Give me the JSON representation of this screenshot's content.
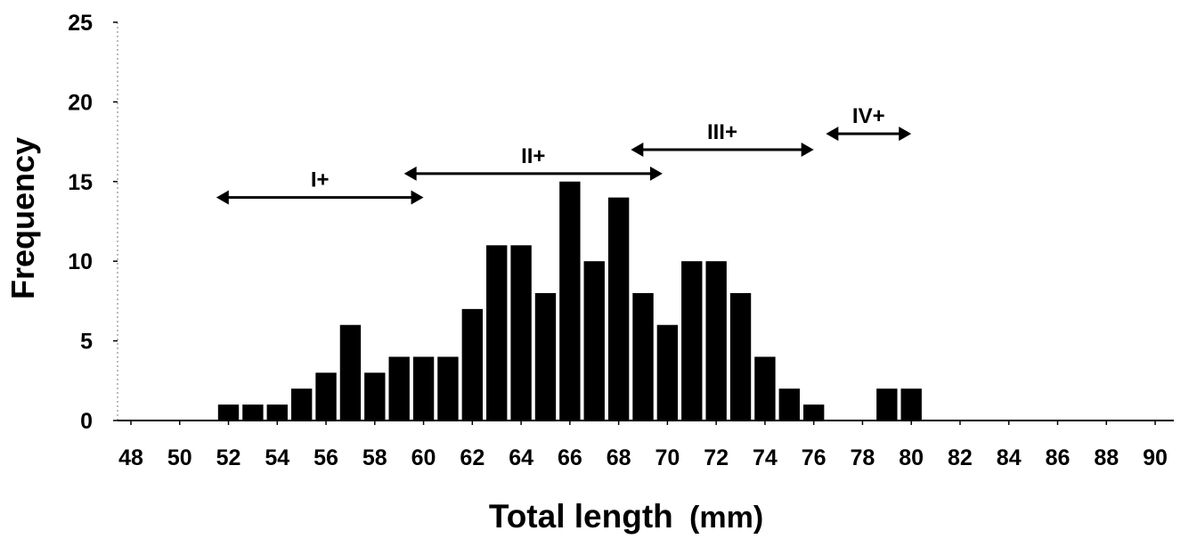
{
  "chart_data": {
    "type": "bar",
    "title": "",
    "xlabel": "Total length (mm)",
    "xlabel_bold": "Total length",
    "xlabel_unit": "(mm)",
    "ylabel": "Frequency",
    "xlim": [
      48,
      90
    ],
    "ylim": [
      0,
      25
    ],
    "x_ticks": [
      48,
      50,
      52,
      54,
      56,
      58,
      60,
      62,
      64,
      66,
      68,
      70,
      72,
      74,
      76,
      78,
      80,
      82,
      84,
      86,
      88,
      90
    ],
    "y_ticks": [
      0,
      5,
      10,
      15,
      20,
      25
    ],
    "grid": false,
    "bar_color": "#000000",
    "bars": [
      {
        "x": 52,
        "value": 1
      },
      {
        "x": 53,
        "value": 1
      },
      {
        "x": 54,
        "value": 1
      },
      {
        "x": 55,
        "value": 2
      },
      {
        "x": 56,
        "value": 3
      },
      {
        "x": 57,
        "value": 6
      },
      {
        "x": 58,
        "value": 3
      },
      {
        "x": 59,
        "value": 4
      },
      {
        "x": 60,
        "value": 4
      },
      {
        "x": 61,
        "value": 4
      },
      {
        "x": 62,
        "value": 7
      },
      {
        "x": 63,
        "value": 11
      },
      {
        "x": 64,
        "value": 11
      },
      {
        "x": 65,
        "value": 8
      },
      {
        "x": 66,
        "value": 15
      },
      {
        "x": 67,
        "value": 10
      },
      {
        "x": 68,
        "value": 14
      },
      {
        "x": 69,
        "value": 8
      },
      {
        "x": 70,
        "value": 6
      },
      {
        "x": 71,
        "value": 10
      },
      {
        "x": 72,
        "value": 10
      },
      {
        "x": 73,
        "value": 8
      },
      {
        "x": 74,
        "value": 4
      },
      {
        "x": 75,
        "value": 2
      },
      {
        "x": 76,
        "value": 1
      },
      {
        "x": 79,
        "value": 2
      },
      {
        "x": 80,
        "value": 2
      }
    ],
    "annotations": [
      {
        "label": "I+",
        "x_start": 51.5,
        "x_end": 60.0,
        "y": 14.0
      },
      {
        "label": "II+",
        "x_start": 59.2,
        "x_end": 69.8,
        "y": 15.5
      },
      {
        "label": "III+",
        "x_start": 68.5,
        "x_end": 76.0,
        "y": 17.0
      },
      {
        "label": "IV+",
        "x_start": 76.5,
        "x_end": 80.0,
        "y": 18.0
      }
    ]
  }
}
